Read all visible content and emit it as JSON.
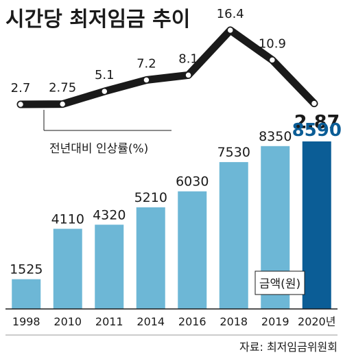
{
  "title": "시간당 최저임금 추이",
  "source": "자료: 최저임금위원회",
  "colors": {
    "bar": "#6db7d6",
    "bar_highlight": "#0b5d96",
    "highlight_text": "#0b5d96",
    "line": "#1a1a1a",
    "text": "#1a1a1a"
  },
  "chart_data": [
    {
      "type": "line",
      "label": "전년대비 인상률(%)",
      "categories": [
        "1998",
        "2010",
        "2011",
        "2014",
        "2016",
        "2018",
        "2019",
        "2020년"
      ],
      "values": [
        2.7,
        2.75,
        5.1,
        7.2,
        8.1,
        16.4,
        10.9,
        2.87
      ],
      "value_labels": [
        "2.7",
        "2.75",
        "5.1",
        "7.2",
        "8.1",
        "16.4",
        "10.9",
        "2.87"
      ],
      "emphasized_label_index": 7
    },
    {
      "type": "bar",
      "label": "금액(원)",
      "categories": [
        "1998",
        "2010",
        "2011",
        "2014",
        "2016",
        "2018",
        "2019",
        "2020년"
      ],
      "values": [
        1525,
        4110,
        4320,
        5210,
        6030,
        7530,
        8350,
        8590
      ],
      "value_labels": [
        "1525",
        "4110",
        "4320",
        "5210",
        "6030",
        "7530",
        "8350",
        "8590"
      ],
      "highlight_index": 7,
      "ylim": [
        0,
        8590
      ],
      "grid": false
    }
  ]
}
